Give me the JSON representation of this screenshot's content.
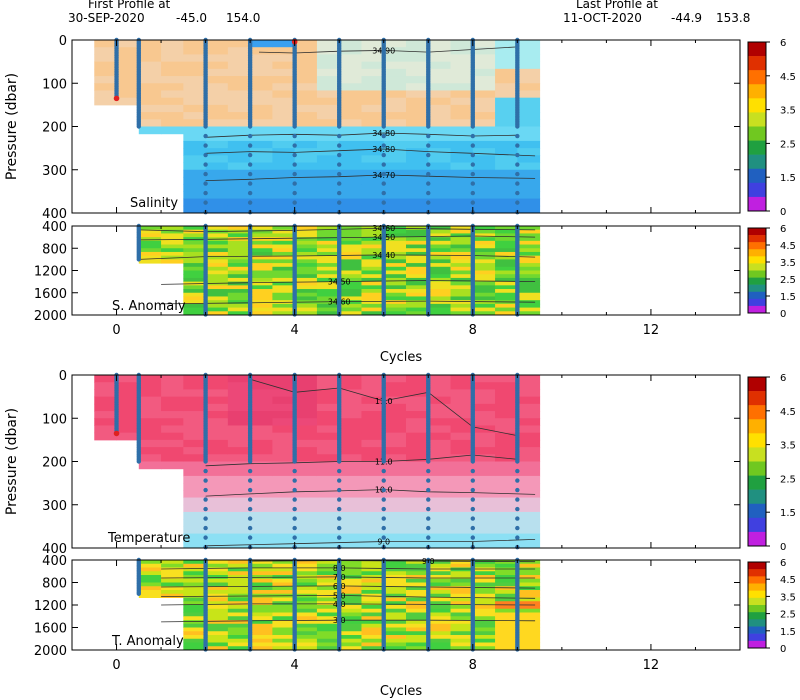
{
  "header": {
    "first_label": "First Profile at",
    "first_date": "30-SEP-2020",
    "first_lat": "-45.0",
    "first_lon": "154.0",
    "last_label": "Last Profile at",
    "last_date": "11-OCT-2020",
    "last_lat": "-44.9",
    "last_lon": "153.8"
  },
  "colorbar": {
    "tick_labels": [
      "6",
      "4.5",
      "3.5",
      "2.5",
      "1.5",
      "0"
    ],
    "colors": [
      "#b00000",
      "#e03000",
      "#ff7000",
      "#ffb000",
      "#ffe000",
      "#c8e020",
      "#70c820",
      "#20a040",
      "#209080",
      "#2060c0",
      "#4040e0",
      "#c020e0"
    ]
  },
  "chart_data": [
    {
      "type": "heatmap",
      "name": "salinity-section",
      "label": "Salinity",
      "xlabel": "",
      "ylabel": "Pressure (dbar)",
      "xlim": [
        -1,
        14
      ],
      "ylim": [
        400,
        0
      ],
      "x_ticks": [
        0,
        4,
        8,
        12
      ],
      "y_ticks": [
        0,
        100,
        200,
        300,
        400
      ],
      "y_tick_labels": [
        "0",
        "100",
        "200",
        "300",
        "400"
      ],
      "contours": [
        {
          "label": "34.90",
          "points": [
            [
              3.2,
              28
            ],
            [
              4,
              30
            ],
            [
              5,
              26
            ],
            [
              6,
              24
            ],
            [
              7,
              28
            ],
            [
              8,
              22
            ],
            [
              9,
              16
            ]
          ]
        },
        {
          "label": "34.80",
          "points": [
            [
              2,
              225
            ],
            [
              3,
              220
            ],
            [
              4,
              218
            ],
            [
              5,
              220
            ],
            [
              6,
              215
            ],
            [
              7,
              218
            ],
            [
              8,
              222
            ],
            [
              9,
              220
            ]
          ]
        },
        {
          "label": "34.80",
          "points": [
            [
              2,
              262
            ],
            [
              3,
              258
            ],
            [
              4,
              260
            ],
            [
              5,
              256
            ],
            [
              6,
              252
            ],
            [
              7,
              258
            ],
            [
              8,
              262
            ],
            [
              9.4,
              268
            ]
          ]
        },
        {
          "label": "34.70",
          "points": [
            [
              2,
              325
            ],
            [
              3,
              322
            ],
            [
              4,
              318
            ],
            [
              5,
              316
            ],
            [
              6,
              312
            ],
            [
              7,
              315
            ],
            [
              8,
              318
            ],
            [
              9.4,
              320
            ]
          ]
        }
      ]
    },
    {
      "type": "heatmap",
      "name": "salinity-anomaly-section",
      "label": "S. Anomaly",
      "xlabel": "Cycles",
      "ylabel": "",
      "xlim": [
        -1,
        14
      ],
      "ylim": [
        2000,
        400
      ],
      "x_ticks": [
        0,
        4,
        8,
        12
      ],
      "y_ticks": [
        400,
        800,
        1200,
        1600,
        2000
      ],
      "y_tick_labels": [
        "400",
        "800",
        "1200",
        "1600",
        "2000"
      ],
      "contours": [
        {
          "label": "34.60",
          "points": [
            [
              0.5,
              470
            ],
            [
              2,
              500
            ],
            [
              4,
              480
            ],
            [
              6,
              440
            ],
            [
              8,
              460
            ],
            [
              9.4,
              470
            ]
          ]
        },
        {
          "label": "34.50",
          "points": [
            [
              0.5,
              650
            ],
            [
              2,
              640
            ],
            [
              4,
              620
            ],
            [
              6,
              600
            ],
            [
              8,
              580
            ],
            [
              9.4,
              600
            ]
          ]
        },
        {
          "label": "34.40",
          "points": [
            [
              0.5,
              1000
            ],
            [
              2,
              950
            ],
            [
              4,
              940
            ],
            [
              6,
              920
            ],
            [
              8,
              930
            ],
            [
              9.4,
              960
            ]
          ]
        },
        {
          "label": "34.50",
          "points": [
            [
              1,
              1450
            ],
            [
              3,
              1420
            ],
            [
              5,
              1400
            ],
            [
              7,
              1380
            ],
            [
              9.4,
              1400
            ]
          ]
        },
        {
          "label": "34.60",
          "points": [
            [
              1,
              1800
            ],
            [
              3,
              1780
            ],
            [
              5,
              1760
            ],
            [
              7,
              1750
            ],
            [
              9.4,
              1770
            ]
          ]
        }
      ]
    },
    {
      "type": "heatmap",
      "name": "temperature-section",
      "label": "Temperature",
      "xlabel": "",
      "ylabel": "Pressure (dbar)",
      "xlim": [
        -1,
        14
      ],
      "ylim": [
        400,
        0
      ],
      "x_ticks": [
        0,
        4,
        8,
        12
      ],
      "y_ticks": [
        0,
        100,
        200,
        300,
        400
      ],
      "y_tick_labels": [
        "0",
        "100",
        "200",
        "300",
        "400"
      ],
      "contours": [
        {
          "label": "11.0",
          "points": [
            [
              3,
              10
            ],
            [
              4,
              40
            ],
            [
              5,
              30
            ],
            [
              6,
              60
            ],
            [
              7,
              40
            ],
            [
              8,
              120
            ],
            [
              9,
              140
            ]
          ]
        },
        {
          "label": "11.0",
          "points": [
            [
              2,
              210
            ],
            [
              3,
              205
            ],
            [
              4,
              203
            ],
            [
              5,
              200
            ],
            [
              6,
              200
            ],
            [
              7,
              195
            ],
            [
              8,
              185
            ],
            [
              9,
              195
            ]
          ]
        },
        {
          "label": "10.0",
          "points": [
            [
              2,
              280
            ],
            [
              3,
              275
            ],
            [
              4,
              270
            ],
            [
              5,
              268
            ],
            [
              6,
              265
            ],
            [
              7,
              270
            ],
            [
              8,
              272
            ],
            [
              9.4,
              276
            ]
          ]
        },
        {
          "label": "9.0",
          "points": [
            [
              2,
              395
            ],
            [
              4,
              390
            ],
            [
              6,
              385
            ],
            [
              8,
              385
            ],
            [
              9.4,
              380
            ]
          ]
        }
      ]
    },
    {
      "type": "heatmap",
      "name": "temperature-anomaly-section",
      "label": "T. Anomaly",
      "xlabel": "Cycles",
      "ylabel": "",
      "xlim": [
        -1,
        14
      ],
      "ylim": [
        2000,
        400
      ],
      "x_ticks": [
        0,
        4,
        8,
        12
      ],
      "y_ticks": [
        400,
        800,
        1200,
        1600,
        2000
      ],
      "y_tick_labels": [
        "400",
        "800",
        "1200",
        "1600",
        "2000"
      ],
      "contours": [
        {
          "label": "9.0",
          "points": [
            [
              3,
              420
            ],
            [
              5,
              410
            ],
            [
              7,
              420
            ],
            [
              9.4,
              430
            ]
          ]
        },
        {
          "label": "8.0",
          "points": [
            [
              1,
              560
            ],
            [
              3,
              540
            ],
            [
              5,
              540
            ],
            [
              7,
              560
            ],
            [
              9.4,
              560
            ]
          ]
        },
        {
          "label": "7.0",
          "points": [
            [
              1,
              720
            ],
            [
              3,
              710
            ],
            [
              5,
              700
            ],
            [
              7,
              720
            ],
            [
              9.4,
              720
            ]
          ]
        },
        {
          "label": "6.0",
          "points": [
            [
              1,
              880
            ],
            [
              3,
              870
            ],
            [
              5,
              860
            ],
            [
              7,
              880
            ],
            [
              9.4,
              900
            ]
          ]
        },
        {
          "label": "5.0",
          "points": [
            [
              1,
              1050
            ],
            [
              3,
              1040
            ],
            [
              5,
              1030
            ],
            [
              7,
              1060
            ],
            [
              9.4,
              1080
            ]
          ]
        },
        {
          "label": "4.0",
          "points": [
            [
              1,
              1200
            ],
            [
              3,
              1180
            ],
            [
              5,
              1180
            ],
            [
              7,
              1190
            ],
            [
              9.4,
              1200
            ]
          ]
        },
        {
          "label": "3.0",
          "points": [
            [
              1,
              1500
            ],
            [
              3,
              1480
            ],
            [
              5,
              1470
            ],
            [
              7,
              1470
            ],
            [
              9.4,
              1480
            ]
          ]
        }
      ]
    }
  ]
}
